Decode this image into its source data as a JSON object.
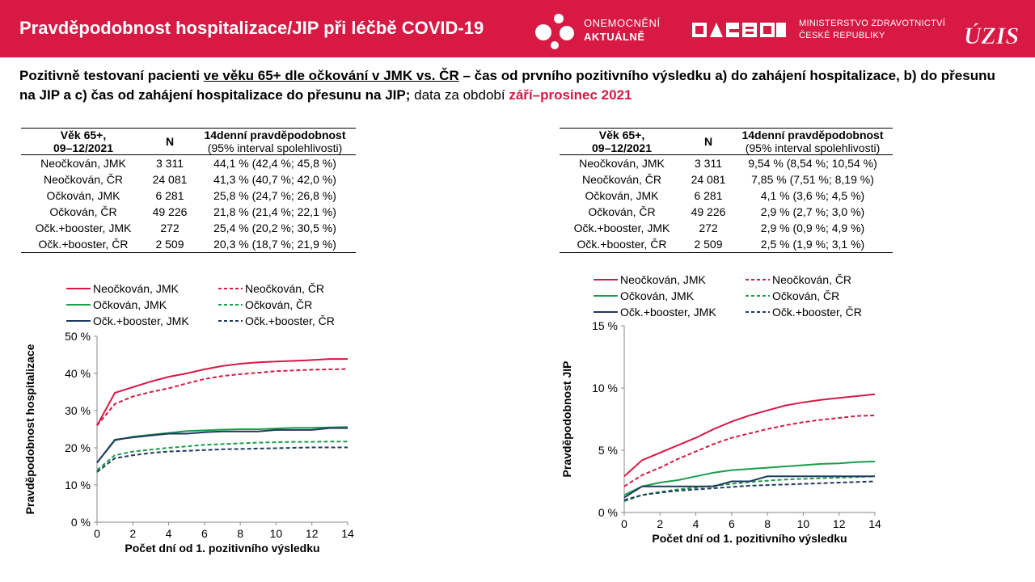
{
  "header": {
    "title": "Pravděpodobnost hospitalizace/JIP při léčbě COVID-19",
    "brand_line1": "ONEMOCNĚNÍ",
    "brand_line2": "AKTUÁLNĚ",
    "ministry_line1": "MINISTERSTVO ZDRAVOTNICTVÍ",
    "ministry_line2": "ČESKÉ REPUBLIKY",
    "uzis_logo": "ÚZIS",
    "bg_color": "#d71944"
  },
  "subtitle": {
    "part1": "Pozitivně testovaní pacienti ",
    "part2": "ve věku 65+ dle očkování v JMK vs. ČR",
    "part3": " – čas od prvního pozitivního výsledku a) do zahájení hospitalizace, b) do přesunu na JIP a c) čas od zahájení hospitalizace do přesunu na JIP;",
    "part4": " data za období ",
    "part5": "září–prosinec 2021"
  },
  "table_hosp": {
    "headers": {
      "age_line1": "Věk 65+,",
      "age_line2": "09–12/2021",
      "n": "N",
      "prob_line1": "14denní pravděpodobnost",
      "prob_line2": "(95% interval spolehlivosti)"
    },
    "rows": [
      {
        "group": "Neočkován, JMK",
        "n": "3 311",
        "prob": "44,1 % (42,4 %; 45,8 %)"
      },
      {
        "group": "Neočkován, ČR",
        "n": "24 081",
        "prob": "41,3 % (40,7 %; 42,0 %)"
      },
      {
        "group": "Očkován, JMK",
        "n": "6 281",
        "prob": "25,8 % (24,7 %; 26,8 %)"
      },
      {
        "group": "Očkován, ČR",
        "n": "49 226",
        "prob": "21,8 % (21,4 %; 22,1 %)"
      },
      {
        "group": "Očk.+booster, JMK",
        "n": "272",
        "prob": "25,4 % (20,2 %; 30,5 %)"
      },
      {
        "group": "Očk.+booster, ČR",
        "n": "2 509",
        "prob": "20,3 % (18,7 %; 21,9 %)"
      }
    ]
  },
  "table_icu": {
    "headers": {
      "age_line1": "Věk 65+,",
      "age_line2": "09–12/2021",
      "n": "N",
      "prob_line1": "14denní pravděpodobnost",
      "prob_line2": "(95% interval spolehlivosti)"
    },
    "rows": [
      {
        "group": "Neočkován, JMK",
        "n": "3 311",
        "prob": "9,54 % (8,54 %; 10,54 %)"
      },
      {
        "group": "Neočkován, ČR",
        "n": "24 081",
        "prob": "7,85 % (7,51 %; 8,19 %)"
      },
      {
        "group": "Očkován, JMK",
        "n": "6 281",
        "prob": "4,1 % (3,6 %; 4,5 %)"
      },
      {
        "group": "Očkován, ČR",
        "n": "49 226",
        "prob": "2,9 % (2,7 %; 3,0 %)"
      },
      {
        "group": "Očk.+booster, JMK",
        "n": "272",
        "prob": "2,9 % (0,9 %; 4,9 %)"
      },
      {
        "group": "Očk.+booster, ČR",
        "n": "2 509",
        "prob": "2,5 % (1,9 %; 3,1 %)"
      }
    ]
  },
  "chart_data": [
    {
      "type": "line",
      "title": "",
      "xlabel": "Počet dní od 1. pozitivního výsledku",
      "ylabel": "Pravděpodobnost hospitalizace",
      "xlim": [
        0,
        14
      ],
      "ylim": [
        0,
        50
      ],
      "xticks": [
        "0",
        "2",
        "4",
        "6",
        "8",
        "10",
        "12",
        "14"
      ],
      "yticks": [
        "0 %",
        "10 %",
        "20 %",
        "30 %",
        "40 %",
        "50 %"
      ],
      "legend": "top",
      "grid": false,
      "x": [
        0,
        1,
        2,
        3,
        4,
        5,
        6,
        7,
        8,
        9,
        10,
        11,
        12,
        13,
        14
      ],
      "series": [
        {
          "name": "Neočkován, JMK",
          "color": "#d71944",
          "dash": false,
          "values": [
            26.0,
            34.8,
            36.3,
            37.8,
            39.1,
            40.0,
            41.1,
            42.0,
            42.6,
            43.0,
            43.2,
            43.4,
            43.6,
            43.9,
            43.9
          ]
        },
        {
          "name": "Neočkován, ČR",
          "color": "#d71944",
          "dash": true,
          "values": [
            26.0,
            31.8,
            33.8,
            35.0,
            36.0,
            37.3,
            38.5,
            39.3,
            39.8,
            40.2,
            40.6,
            40.8,
            41.0,
            41.1,
            41.2
          ]
        },
        {
          "name": "Očkován, JMK",
          "color": "#1a9e4a",
          "dash": false,
          "values": [
            16.0,
            22.0,
            23.0,
            23.5,
            24.0,
            24.5,
            24.7,
            24.9,
            25.0,
            25.0,
            25.2,
            25.4,
            25.4,
            25.5,
            25.6
          ]
        },
        {
          "name": "Očkován, ČR",
          "color": "#1a9e4a",
          "dash": true,
          "values": [
            14.0,
            18.0,
            19.0,
            19.5,
            20.0,
            20.4,
            20.8,
            21.0,
            21.2,
            21.4,
            21.5,
            21.6,
            21.6,
            21.7,
            21.7
          ]
        },
        {
          "name": "Očk.+booster, JMK",
          "color": "#1f3a5f",
          "dash": false,
          "values": [
            16.0,
            22.2,
            22.8,
            23.3,
            23.8,
            23.8,
            24.2,
            24.4,
            24.4,
            24.4,
            24.8,
            24.8,
            24.8,
            25.3,
            25.3
          ]
        },
        {
          "name": "Očk.+booster, ČR",
          "color": "#1f3a5f",
          "dash": true,
          "values": [
            13.5,
            17.2,
            18.0,
            18.6,
            19.0,
            19.2,
            19.4,
            19.6,
            19.7,
            19.8,
            19.9,
            20.0,
            20.1,
            20.1,
            20.1
          ]
        }
      ]
    },
    {
      "type": "line",
      "title": "",
      "xlabel": "Počet dní od 1. pozitivního výsledku",
      "ylabel": "Pravděpodobnost JIP",
      "xlim": [
        0,
        14
      ],
      "ylim": [
        0,
        15
      ],
      "xticks": [
        "0",
        "2",
        "4",
        "6",
        "8",
        "10",
        "12",
        "14"
      ],
      "yticks": [
        "0 %",
        "5 %",
        "10 %",
        "15 %"
      ],
      "legend": "top",
      "grid": false,
      "x": [
        0,
        1,
        2,
        3,
        4,
        5,
        6,
        7,
        8,
        9,
        10,
        11,
        12,
        13,
        14
      ],
      "series": [
        {
          "name": "Neočkován, JMK",
          "color": "#d71944",
          "dash": false,
          "values": [
            2.9,
            4.2,
            4.8,
            5.4,
            6.0,
            6.7,
            7.3,
            7.8,
            8.2,
            8.6,
            8.85,
            9.05,
            9.2,
            9.35,
            9.5
          ]
        },
        {
          "name": "Neočkován, ČR",
          "color": "#d71944",
          "dash": true,
          "values": [
            2.1,
            3.0,
            3.6,
            4.3,
            4.9,
            5.5,
            6.0,
            6.35,
            6.7,
            7.0,
            7.25,
            7.45,
            7.6,
            7.75,
            7.8
          ]
        },
        {
          "name": "Očkován, JMK",
          "color": "#1a9e4a",
          "dash": false,
          "values": [
            1.4,
            2.1,
            2.4,
            2.6,
            2.9,
            3.2,
            3.4,
            3.5,
            3.6,
            3.7,
            3.8,
            3.9,
            3.95,
            4.05,
            4.1
          ]
        },
        {
          "name": "Očkován, ČR",
          "color": "#1a9e4a",
          "dash": true,
          "values": [
            0.9,
            1.4,
            1.65,
            1.85,
            2.0,
            2.15,
            2.3,
            2.45,
            2.55,
            2.65,
            2.7,
            2.75,
            2.8,
            2.85,
            2.9
          ]
        },
        {
          "name": "Očk.+booster, JMK",
          "color": "#1f3a5f",
          "dash": false,
          "values": [
            1.2,
            2.1,
            2.1,
            2.1,
            2.1,
            2.1,
            2.5,
            2.5,
            2.9,
            2.9,
            2.9,
            2.9,
            2.9,
            2.9,
            2.9
          ]
        },
        {
          "name": "Očk.+booster, ČR",
          "color": "#1f3a5f",
          "dash": true,
          "values": [
            1.0,
            1.4,
            1.6,
            1.75,
            1.85,
            1.95,
            2.05,
            2.15,
            2.2,
            2.25,
            2.3,
            2.35,
            2.4,
            2.45,
            2.5
          ]
        }
      ]
    }
  ]
}
